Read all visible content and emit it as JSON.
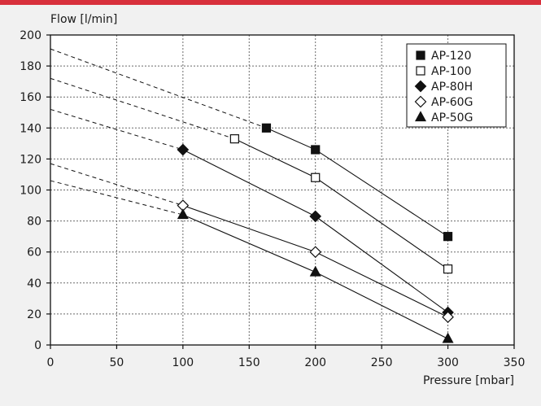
{
  "chart_data": {
    "type": "line",
    "title": "",
    "xlabel": "Pressure [mbar]",
    "ylabel": "Flow [l/min]",
    "xlim": [
      0,
      350
    ],
    "ylim": [
      0,
      200
    ],
    "xticks": [
      0,
      50,
      100,
      150,
      200,
      250,
      300,
      350
    ],
    "yticks": [
      0,
      20,
      40,
      60,
      80,
      100,
      120,
      140,
      160,
      180,
      200
    ],
    "grid": "dotted",
    "legend_position": "top-right",
    "colors": {
      "accent_bar": "#d8303c",
      "background": "#f1f1f1",
      "plot_area": "#ffffff",
      "ink": "#111111",
      "grid": "#6a6a6a"
    },
    "series": [
      {
        "name": "AP-120",
        "marker": "filled-square",
        "points": [
          [
            163,
            140
          ],
          [
            200,
            126
          ],
          [
            300,
            70
          ]
        ],
        "extrapolation": [
          [
            0,
            191
          ],
          [
            163,
            140
          ]
        ]
      },
      {
        "name": "AP-100",
        "marker": "open-square",
        "points": [
          [
            139,
            133
          ],
          [
            200,
            108
          ],
          [
            300,
            49
          ]
        ],
        "extrapolation": [
          [
            0,
            172
          ],
          [
            139,
            133
          ]
        ]
      },
      {
        "name": "AP-80H",
        "marker": "filled-diamond",
        "points": [
          [
            100,
            126
          ],
          [
            200,
            83
          ],
          [
            300,
            21
          ]
        ],
        "extrapolation": [
          [
            0,
            152
          ],
          [
            100,
            126
          ]
        ]
      },
      {
        "name": "AP-60G",
        "marker": "open-diamond",
        "points": [
          [
            100,
            90
          ],
          [
            200,
            60
          ],
          [
            300,
            18
          ]
        ],
        "extrapolation": [
          [
            0,
            117
          ],
          [
            100,
            90
          ]
        ]
      },
      {
        "name": "AP-50G",
        "marker": "filled-triangle",
        "points": [
          [
            100,
            84
          ],
          [
            200,
            47
          ],
          [
            300,
            4
          ]
        ],
        "extrapolation": [
          [
            0,
            106
          ],
          [
            100,
            84
          ]
        ]
      }
    ]
  }
}
